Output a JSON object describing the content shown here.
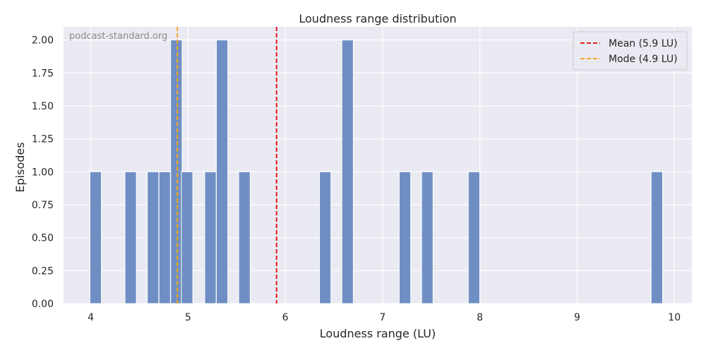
{
  "chart_data": {
    "type": "bar",
    "title": "Loudness range distribution",
    "xlabel": "Loudness range (LU)",
    "ylabel": "Episodes",
    "watermark": "podcast-standard.org",
    "xlim": [
      3.72,
      10.18
    ],
    "ylim": [
      0,
      2.1
    ],
    "xticks": [
      4,
      5,
      6,
      7,
      8,
      9,
      10
    ],
    "xtick_labels": [
      "4",
      "5",
      "6",
      "7",
      "8",
      "9",
      "10"
    ],
    "yticks": [
      0,
      0.25,
      0.5,
      0.75,
      1.0,
      1.25,
      1.5,
      1.75,
      2.0
    ],
    "ytick_labels": [
      "0.00",
      "0.25",
      "0.50",
      "0.75",
      "1.00",
      "1.25",
      "1.50",
      "1.75",
      "2.00"
    ],
    "grid": true,
    "legend_position": "top-right",
    "bin_width": 0.1177,
    "bars": [
      {
        "x": 4.05,
        "value": 1
      },
      {
        "x": 4.41,
        "value": 1
      },
      {
        "x": 4.64,
        "value": 1
      },
      {
        "x": 4.76,
        "value": 1
      },
      {
        "x": 4.88,
        "value": 2
      },
      {
        "x": 4.99,
        "value": 1
      },
      {
        "x": 5.23,
        "value": 1
      },
      {
        "x": 5.35,
        "value": 2
      },
      {
        "x": 5.58,
        "value": 1
      },
      {
        "x": 6.41,
        "value": 1
      },
      {
        "x": 6.64,
        "value": 2
      },
      {
        "x": 7.23,
        "value": 1
      },
      {
        "x": 7.46,
        "value": 1
      },
      {
        "x": 7.94,
        "value": 1
      },
      {
        "x": 9.82,
        "value": 1
      }
    ],
    "reference_lines": [
      {
        "label": "Mean (5.9 LU)",
        "x": 5.91,
        "color": "#e41a1c"
      },
      {
        "label": "Mode (4.9 LU)",
        "x": 4.89,
        "color": "#f5a623"
      }
    ],
    "bar_color": "#6f8fc4"
  }
}
